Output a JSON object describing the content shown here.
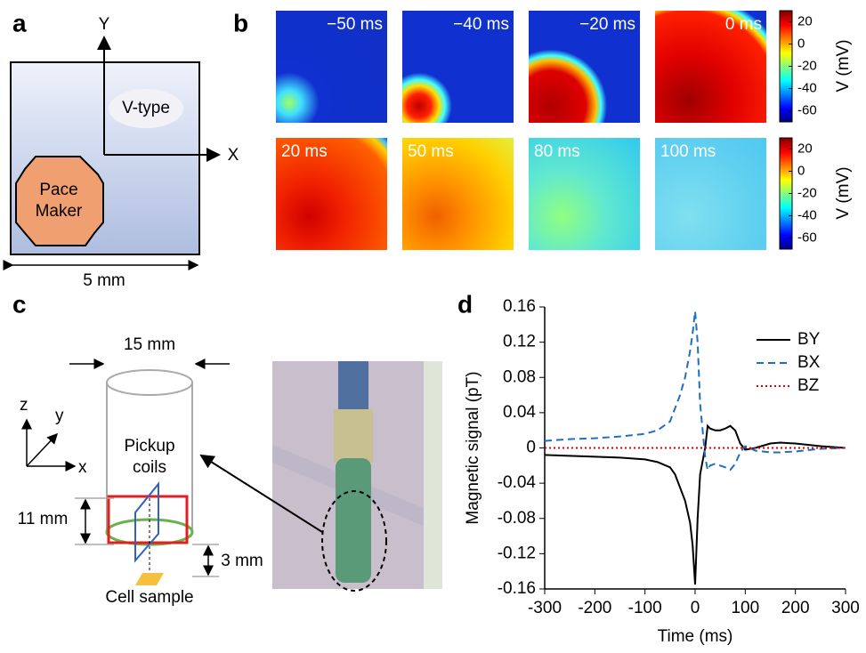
{
  "panel_labels": [
    "a",
    "b",
    "c",
    "d"
  ],
  "panel_a": {
    "y_axis": "Y",
    "x_axis": "X",
    "region": "V-type",
    "pacemaker": [
      "Pace",
      "Maker"
    ],
    "scale": "5 mm"
  },
  "panel_b": {
    "frames": [
      "−50 ms",
      "−40 ms",
      "−20 ms",
      "0 ms",
      "20 ms",
      "50 ms",
      "80 ms",
      "100 ms"
    ],
    "colorbar_label": "V (mV)",
    "clim": [
      -70,
      30
    ],
    "colorbar_ticks": [
      20,
      0,
      -20,
      -40,
      -60
    ]
  },
  "panel_c": {
    "diameter": "15 mm",
    "axes": [
      "z",
      "y",
      "x"
    ],
    "pickup": [
      "Pickup",
      "coils"
    ],
    "coil_height": "11 mm",
    "gap": "3 mm",
    "sample": "Cell sample"
  },
  "chart_data": {
    "type": "line",
    "xlabel": "Time (ms)",
    "ylabel": "Magnetic signal  (pT)",
    "x": [
      -300,
      -250,
      -200,
      -150,
      -100,
      -75,
      -50,
      -40,
      -30,
      -20,
      -10,
      -5,
      0,
      5,
      10,
      20,
      25,
      30,
      40,
      50,
      60,
      70,
      80,
      90,
      100,
      120,
      150,
      170,
      200,
      250,
      300
    ],
    "series": [
      {
        "name": "BY",
        "color": "#000000",
        "dash": "solid",
        "values": [
          -0.008,
          -0.009,
          -0.01,
          -0.011,
          -0.013,
          -0.016,
          -0.022,
          -0.03,
          -0.045,
          -0.06,
          -0.085,
          -0.11,
          -0.155,
          -0.08,
          -0.03,
          0,
          0.025,
          0.022,
          0.02,
          0.02,
          0.022,
          0.025,
          0.02,
          0.005,
          -0.002,
          0,
          0.005,
          0.006,
          0.005,
          0.002,
          0
        ]
      },
      {
        "name": "BX",
        "color": "#1f6fc0",
        "dash": "dashed",
        "values": [
          0.008,
          0.01,
          0.011,
          0.013,
          0.016,
          0.02,
          0.03,
          0.045,
          0.06,
          0.08,
          0.11,
          0.13,
          0.155,
          0.12,
          0.05,
          -0.01,
          -0.025,
          -0.02,
          -0.018,
          -0.02,
          -0.022,
          -0.025,
          -0.018,
          -0.005,
          0.002,
          -0.003,
          -0.005,
          -0.005,
          -0.004,
          -0.001,
          0
        ]
      },
      {
        "name": "BZ",
        "color": "#e00000",
        "dash": "dotted",
        "values": [
          0,
          0,
          0,
          0,
          0,
          0,
          0,
          0,
          0,
          0,
          0,
          0,
          0,
          0,
          0,
          0,
          0,
          0,
          0,
          0,
          0,
          0,
          0,
          0,
          0,
          0,
          0,
          0,
          0,
          0,
          0
        ]
      }
    ],
    "xlim": [
      -300,
      300
    ],
    "ylim": [
      -0.16,
      0.16
    ],
    "xticks": [
      -300,
      -200,
      -100,
      0,
      100,
      200,
      300
    ],
    "yticks": [
      -0.16,
      -0.12,
      -0.08,
      -0.04,
      0,
      0.04,
      0.08,
      0.12,
      0.16
    ],
    "legend": "upper right"
  }
}
